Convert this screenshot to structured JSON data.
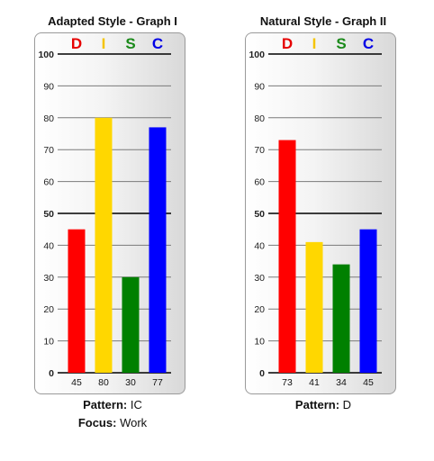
{
  "chart_data": [
    {
      "type": "bar",
      "title": "Adapted Style - Graph I",
      "categories": [
        "D",
        "I",
        "S",
        "C"
      ],
      "category_colors": [
        "#e60000",
        "#f5c400",
        "#1a8a1a",
        "#0000e6"
      ],
      "values": [
        45,
        80,
        30,
        77
      ],
      "value_labels": [
        "45",
        "80",
        "30",
        "77"
      ],
      "ylim": [
        0,
        100
      ],
      "yticks": [
        0,
        10,
        20,
        30,
        40,
        50,
        60,
        70,
        80,
        90,
        100
      ],
      "bar_colors": [
        "#ff0000",
        "#ffd700",
        "#008000",
        "#0000ff"
      ],
      "grid": true,
      "footer": [
        {
          "label": "Pattern:",
          "value": "IC"
        },
        {
          "label": "Focus:",
          "value": "Work"
        }
      ]
    },
    {
      "type": "bar",
      "title": "Natural Style - Graph II",
      "categories": [
        "D",
        "I",
        "S",
        "C"
      ],
      "category_colors": [
        "#e60000",
        "#f5c400",
        "#1a8a1a",
        "#0000e6"
      ],
      "values": [
        73,
        41,
        34,
        45
      ],
      "value_labels": [
        "73",
        "41",
        "34",
        "45"
      ],
      "ylim": [
        0,
        100
      ],
      "yticks": [
        0,
        10,
        20,
        30,
        40,
        50,
        60,
        70,
        80,
        90,
        100
      ],
      "bar_colors": [
        "#ff0000",
        "#ffd700",
        "#008000",
        "#0000ff"
      ],
      "grid": true,
      "footer": [
        {
          "label": "Pattern:",
          "value": "D"
        }
      ]
    }
  ]
}
